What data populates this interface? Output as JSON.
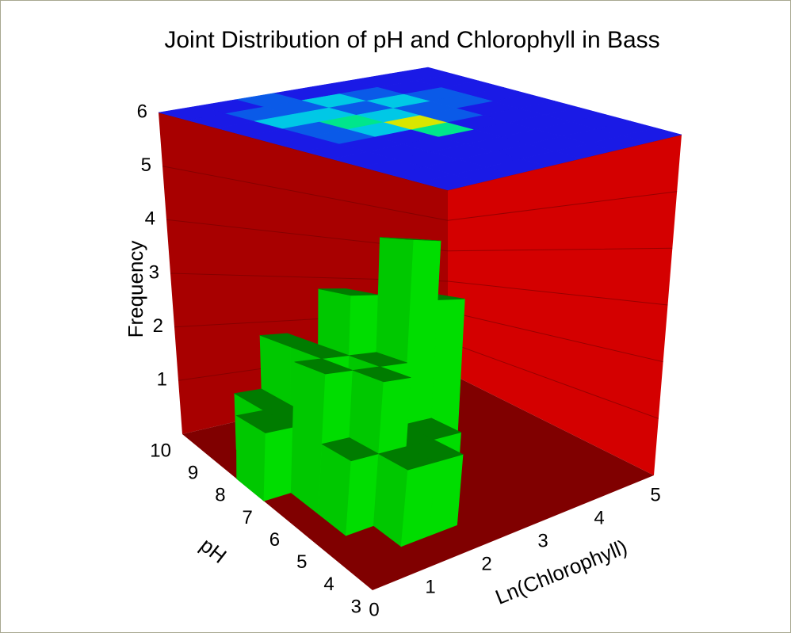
{
  "chart_data": {
    "type": "bar3d",
    "title": "Joint Distribution of pH and Chlorophyll in Bass",
    "x_label": "Ln(Chlorophyll)",
    "y_label": "pH",
    "z_label": "Frequency",
    "xbins": [
      0,
      0.5,
      1,
      1.5,
      2,
      2.5,
      3,
      3.5,
      4,
      4.5,
      5
    ],
    "ybins": [
      3,
      4,
      5,
      6,
      7,
      8,
      9,
      10
    ],
    "counts": [
      [
        0,
        0,
        0,
        0,
        0,
        0,
        0,
        0,
        0,
        0
      ],
      [
        0,
        0,
        1,
        1,
        0,
        0,
        0,
        0,
        0,
        0
      ],
      [
        0,
        1,
        2,
        1,
        1,
        0,
        0,
        0,
        0,
        0
      ],
      [
        0,
        2,
        1,
        2,
        4,
        3,
        0,
        0,
        0,
        0
      ],
      [
        1,
        1,
        2,
        3,
        2,
        0,
        0,
        0,
        0,
        0
      ],
      [
        0,
        1,
        2,
        1,
        1,
        0,
        0,
        0,
        0,
        0
      ],
      [
        0,
        0,
        0,
        0,
        0,
        0,
        0,
        0,
        0,
        0
      ]
    ],
    "xlim": [
      0,
      5
    ],
    "xticks": [
      0,
      1,
      2,
      3,
      4,
      5
    ],
    "ylim": [
      3,
      10
    ],
    "yticks": [
      3,
      4,
      5,
      6,
      7,
      8,
      9,
      10
    ],
    "zlim": [
      0,
      6
    ],
    "zticks": [
      1,
      2,
      3,
      4,
      5,
      6
    ],
    "grid": true,
    "bar_colors": {
      "top": "#007c00",
      "left": "#00c800",
      "right": "#00dd00"
    },
    "wall_colors": {
      "left": "#a80000",
      "right": "#d40000",
      "floor": "#800000"
    },
    "colormap": [
      "#1a1ae6",
      "#0a5ae8",
      "#00c8e6",
      "#00e68c",
      "#d8e600"
    ]
  }
}
